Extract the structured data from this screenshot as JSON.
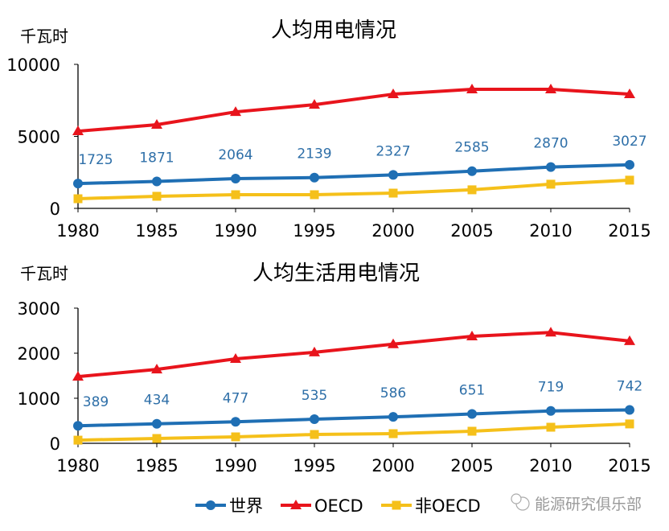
{
  "chart_data": [
    {
      "type": "line",
      "title": "人均用电情况",
      "ylabel": "千瓦时",
      "xlabel": "",
      "categories": [
        "1980",
        "1985",
        "1990",
        "1995",
        "2000",
        "2005",
        "2010",
        "2015"
      ],
      "ylim": [
        0,
        10000
      ],
      "yticks": [
        "0",
        "5000",
        "10000"
      ],
      "yticks_values": [
        0,
        5000,
        10000
      ],
      "grid": false,
      "series": [
        {
          "name": "世界",
          "color": "#1f6fb4",
          "marker": "circle",
          "values": [
            1725,
            1871,
            2064,
            2139,
            2327,
            2585,
            2870,
            3027
          ],
          "data_labels": [
            "1725",
            "1871",
            "2064",
            "2139",
            "2327",
            "2585",
            "2870",
            "3027"
          ]
        },
        {
          "name": "OECD",
          "color": "#e8141c",
          "marker": "triangle",
          "values": [
            5360,
            5810,
            6700,
            7200,
            7930,
            8270,
            8270,
            7930
          ]
        },
        {
          "name": "非OECD",
          "color": "#f5c01a",
          "marker": "square",
          "values": [
            670,
            840,
            950,
            950,
            1060,
            1290,
            1680,
            1960
          ]
        }
      ]
    },
    {
      "type": "line",
      "title": "人均生活用电情况",
      "ylabel": "千瓦时",
      "xlabel": "",
      "categories": [
        "1980",
        "1985",
        "1990",
        "1995",
        "2000",
        "2005",
        "2010",
        "2015"
      ],
      "ylim": [
        0,
        3000
      ],
      "yticks": [
        "0",
        "1000",
        "2000",
        "3000"
      ],
      "yticks_values": [
        0,
        1000,
        2000,
        3000
      ],
      "grid": false,
      "series": [
        {
          "name": "世界",
          "color": "#1f6fb4",
          "marker": "circle",
          "values": [
            389,
            434,
            477,
            535,
            586,
            651,
            719,
            742
          ],
          "data_labels": [
            "389",
            "434",
            "477",
            "535",
            "586",
            "651",
            "719",
            "742"
          ]
        },
        {
          "name": "OECD",
          "color": "#e8141c",
          "marker": "triangle",
          "values": [
            1480,
            1640,
            1875,
            2020,
            2200,
            2375,
            2460,
            2270
          ]
        },
        {
          "name": "非OECD",
          "color": "#f5c01a",
          "marker": "square",
          "values": [
            70,
            107,
            143,
            196,
            214,
            268,
            357,
            430
          ]
        }
      ]
    }
  ],
  "legend": {
    "placement": "bottom",
    "items": [
      "世界",
      "OECD",
      "非OECD"
    ]
  },
  "watermark": "能源研究俱乐部"
}
